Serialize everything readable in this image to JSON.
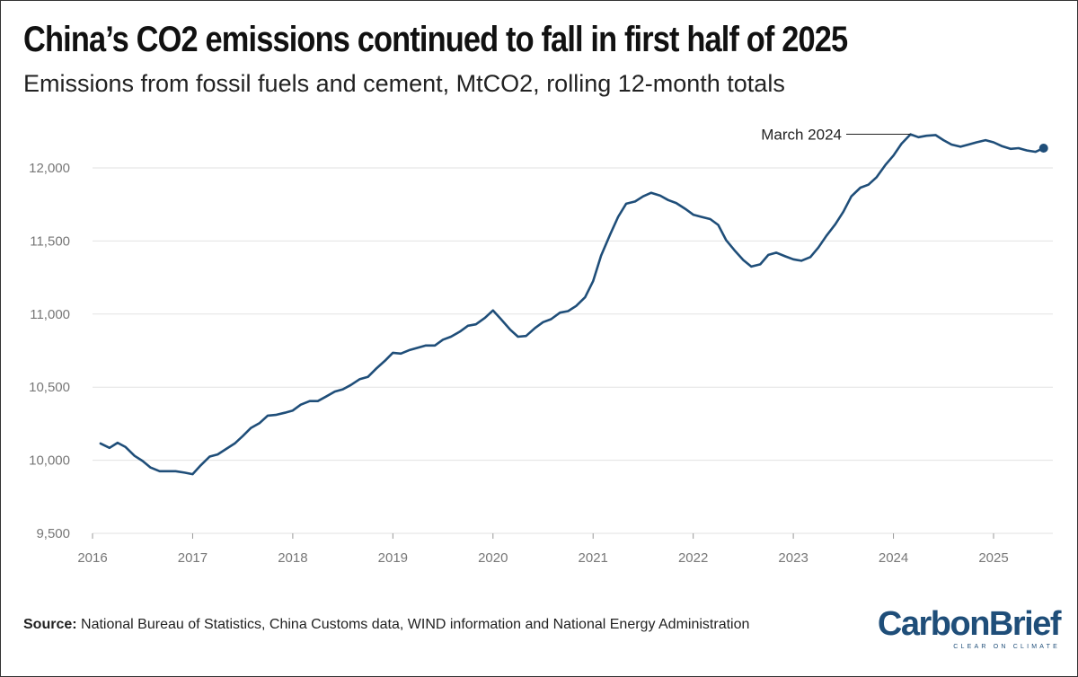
{
  "title": "China’s CO2 emissions continued to fall in first half of 2025",
  "subtitle": "Emissions from fossil fuels and cement, MtCO2, rolling 12-month totals",
  "source_label": "Source:",
  "source_text": "National Bureau of Statistics, China Customs data, WIND information and National Energy Administration",
  "logo": {
    "name": "CarbonBrief",
    "tagline": "CLEAR ON CLIMATE"
  },
  "colors": {
    "line": "#1f4e79",
    "grid": "#e2e2e2",
    "tick": "#777777",
    "brand": "#1f4e79"
  },
  "chart_data": {
    "type": "line",
    "title": "China’s CO2 emissions continued to fall in first half of 2025",
    "subtitle": "Emissions from fossil fuels and cement, MtCO2, rolling 12-month totals",
    "xlabel": "",
    "ylabel": "",
    "xlim": [
      2016,
      2025.75
    ],
    "ylim": [
      9500,
      12400
    ],
    "grid": true,
    "x_ticks": [
      2016,
      2017,
      2018,
      2019,
      2020,
      2021,
      2022,
      2023,
      2024,
      2025
    ],
    "x_tick_labels": [
      "2016",
      "2017",
      "2018",
      "2019",
      "2020",
      "2021",
      "2022",
      "2023",
      "2024",
      "2025"
    ],
    "y_ticks": [
      9500,
      10000,
      10500,
      11000,
      11500,
      12000
    ],
    "y_tick_labels": [
      "9,500",
      "10,000",
      "10,500",
      "11,000",
      "11,500",
      "12,000"
    ],
    "annotation": {
      "label": "March 2024",
      "x": 2024.17,
      "y": 12230
    },
    "end_marker": {
      "x": 2025.5,
      "y": 12135
    },
    "series": [
      {
        "name": "China CO2 emissions (MtCO2, rolling 12-month)",
        "x": [
          2016.08,
          2016.17,
          2016.25,
          2016.33,
          2016.42,
          2016.5,
          2016.58,
          2016.67,
          2016.75,
          2016.83,
          2016.92,
          2017.0,
          2017.08,
          2017.17,
          2017.25,
          2017.33,
          2017.42,
          2017.5,
          2017.58,
          2017.67,
          2017.75,
          2017.83,
          2017.92,
          2018.0,
          2018.08,
          2018.17,
          2018.25,
          2018.33,
          2018.42,
          2018.5,
          2018.58,
          2018.67,
          2018.75,
          2018.83,
          2018.92,
          2019.0,
          2019.08,
          2019.17,
          2019.25,
          2019.33,
          2019.42,
          2019.5,
          2019.58,
          2019.67,
          2019.75,
          2019.83,
          2019.92,
          2020.0,
          2020.08,
          2020.17,
          2020.25,
          2020.33,
          2020.42,
          2020.5,
          2020.58,
          2020.67,
          2020.75,
          2020.83,
          2020.92,
          2021.0,
          2021.08,
          2021.17,
          2021.25,
          2021.33,
          2021.42,
          2021.5,
          2021.58,
          2021.67,
          2021.75,
          2021.83,
          2021.92,
          2022.0,
          2022.08,
          2022.17,
          2022.25,
          2022.33,
          2022.42,
          2022.5,
          2022.58,
          2022.67,
          2022.75,
          2022.83,
          2022.92,
          2023.0,
          2023.08,
          2023.17,
          2023.25,
          2023.33,
          2023.42,
          2023.5,
          2023.58,
          2023.67,
          2023.75,
          2023.83,
          2023.92,
          2024.0,
          2024.08,
          2024.17,
          2024.25,
          2024.33,
          2024.42,
          2024.5,
          2024.58,
          2024.67,
          2024.75,
          2024.83,
          2024.92,
          2025.0,
          2025.08,
          2025.17,
          2025.25,
          2025.33,
          2025.42,
          2025.5
        ],
        "values": [
          10115,
          10085,
          10120,
          10090,
          10030,
          9995,
          9950,
          9925,
          9925,
          9925,
          9915,
          9905,
          9965,
          10025,
          10040,
          10075,
          10115,
          10165,
          10220,
          10255,
          10305,
          10310,
          10325,
          10340,
          10380,
          10405,
          10405,
          10435,
          10470,
          10485,
          10515,
          10555,
          10570,
          10625,
          10680,
          10735,
          10730,
          10755,
          10770,
          10785,
          10785,
          10825,
          10845,
          10880,
          10920,
          10930,
          10975,
          11025,
          10965,
          10895,
          10845,
          10850,
          10905,
          10945,
          10965,
          11010,
          11020,
          11055,
          11115,
          11225,
          11400,
          11545,
          11665,
          11755,
          11770,
          11805,
          11830,
          11810,
          11780,
          11760,
          11720,
          11680,
          11665,
          11650,
          11610,
          11505,
          11430,
          11370,
          11325,
          11340,
          11405,
          11420,
          11395,
          11375,
          11365,
          11390,
          11455,
          11535,
          11615,
          11700,
          11805,
          11865,
          11885,
          11935,
          12020,
          12085,
          12165,
          12230,
          12210,
          12220,
          12225,
          12190,
          12160,
          12145,
          12160,
          12175,
          12190,
          12175,
          12150,
          12130,
          12135,
          12120,
          12110,
          12135
        ]
      }
    ]
  }
}
